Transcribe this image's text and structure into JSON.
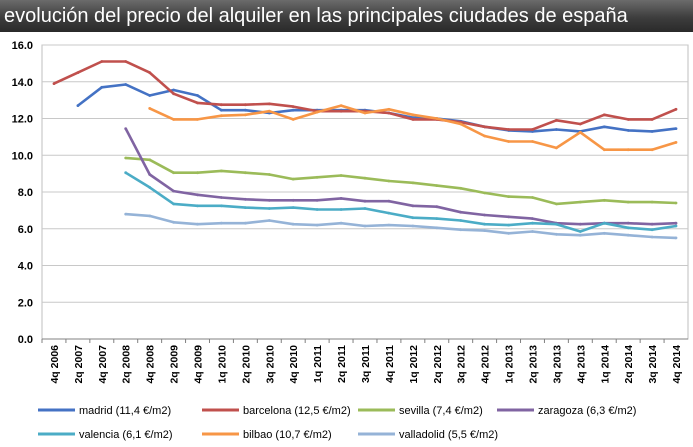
{
  "title": "evolución del precio del alquiler en las principales ciudades de españa",
  "chart_data": {
    "type": "line",
    "title": "evolución del precio del alquiler en las principales ciudades de españa",
    "xlabel": "",
    "ylabel": "",
    "ylim": [
      0,
      16
    ],
    "yticks": [
      "0.0",
      "2.0",
      "4.0",
      "6.0",
      "8.0",
      "10.0",
      "12.0",
      "14.0",
      "16.0"
    ],
    "grid": true,
    "legend_position": "bottom",
    "categories": [
      "4q 2006",
      "2q 2007",
      "4q 2007",
      "2q 2008",
      "4q 2008",
      "2q 2009",
      "4q 2009",
      "1q 2010",
      "2q 2010",
      "3q 2010",
      "4q 2010",
      "1q 2011",
      "2q 2011",
      "3q 2011",
      "4q 2011",
      "1q 2012",
      "2q 2012",
      "3q 2012",
      "4q 2012",
      "1q 2013",
      "2q 2013",
      "3q 2013",
      "4q 2013",
      "1q 2014",
      "2q 2014",
      "3q 2014",
      "4q 2014"
    ],
    "series": [
      {
        "name": "madrid (11,4 €/m2)",
        "color": "#4472C4",
        "values": [
          null,
          12.7,
          13.7,
          13.85,
          13.25,
          13.55,
          13.25,
          12.45,
          12.45,
          12.3,
          12.45,
          12.45,
          12.45,
          12.45,
          12.3,
          12.05,
          12.0,
          11.85,
          11.55,
          11.35,
          11.3,
          11.4,
          11.3,
          11.55,
          11.35,
          11.3,
          11.45
        ]
      },
      {
        "name": "barcelona (12,5 €/m2)",
        "color": "#C0504D",
        "values": [
          13.9,
          14.5,
          15.1,
          15.1,
          14.5,
          13.35,
          12.85,
          12.75,
          12.75,
          12.8,
          12.65,
          12.4,
          12.4,
          12.4,
          12.3,
          11.95,
          11.95,
          11.8,
          11.55,
          11.4,
          11.4,
          11.9,
          11.7,
          12.2,
          11.95,
          11.95,
          12.5
        ]
      },
      {
        "name": "sevilla (7,4 €/m2)",
        "color": "#9BBB59",
        "values": [
          null,
          null,
          null,
          9.85,
          9.75,
          9.05,
          9.05,
          9.15,
          9.05,
          8.95,
          8.7,
          8.8,
          8.9,
          8.75,
          8.6,
          8.5,
          8.35,
          8.2,
          7.95,
          7.75,
          7.7,
          7.35,
          7.45,
          7.55,
          7.45,
          7.45,
          7.4
        ]
      },
      {
        "name": "zaragoza (6,3 €/m2)",
        "color": "#8064A2",
        "values": [
          null,
          null,
          null,
          11.45,
          8.95,
          8.05,
          7.85,
          7.7,
          7.6,
          7.55,
          7.55,
          7.55,
          7.65,
          7.5,
          7.5,
          7.25,
          7.2,
          6.9,
          6.75,
          6.65,
          6.55,
          6.3,
          6.25,
          6.3,
          6.3,
          6.25,
          6.3
        ]
      },
      {
        "name": "valencia (6,1 €/m2)",
        "color": "#4BACC6",
        "values": [
          null,
          null,
          null,
          9.05,
          8.25,
          7.35,
          7.25,
          7.25,
          7.15,
          7.1,
          7.15,
          7.05,
          7.05,
          7.1,
          6.85,
          6.6,
          6.55,
          6.45,
          6.25,
          6.2,
          6.3,
          6.25,
          5.85,
          6.3,
          6.05,
          5.95,
          6.15
        ]
      },
      {
        "name": "bilbao (10,7 €/m2)",
        "color": "#F79646",
        "values": [
          null,
          null,
          null,
          null,
          12.55,
          11.95,
          11.95,
          12.15,
          12.2,
          12.4,
          11.95,
          12.35,
          12.7,
          12.3,
          12.5,
          12.2,
          12.0,
          11.7,
          11.05,
          10.75,
          10.75,
          10.4,
          11.25,
          10.3,
          10.3,
          10.3,
          10.7
        ]
      },
      {
        "name": "valladolid (5,5 €/m2)",
        "color": "#95B3D7",
        "values": [
          null,
          null,
          null,
          6.8,
          6.7,
          6.35,
          6.25,
          6.3,
          6.3,
          6.45,
          6.25,
          6.2,
          6.3,
          6.15,
          6.2,
          6.15,
          6.05,
          5.95,
          5.9,
          5.75,
          5.85,
          5.7,
          5.65,
          5.75,
          5.65,
          5.55,
          5.5
        ]
      }
    ]
  }
}
